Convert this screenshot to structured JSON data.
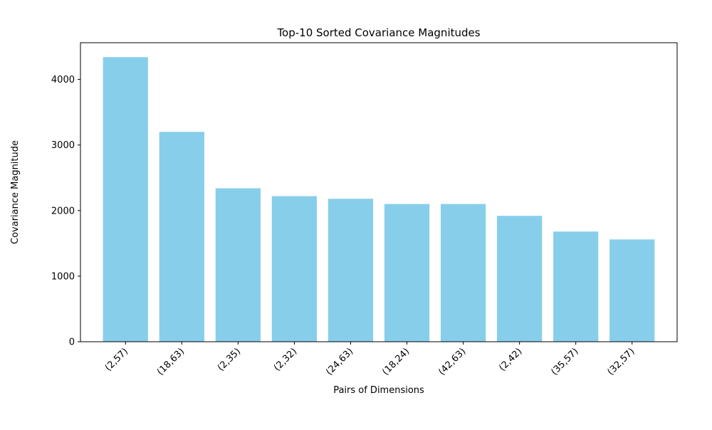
{
  "chart_data": {
    "type": "bar",
    "title": "Top-10 Sorted Covariance Magnitudes",
    "xlabel": "Pairs of Dimensions",
    "ylabel": "Covariance Magnitude",
    "categories": [
      "(2,57)",
      "(18,63)",
      "(2,35)",
      "(2,32)",
      "(24,63)",
      "(18,24)",
      "(42,63)",
      "(2,42)",
      "(35,57)",
      "(32,57)"
    ],
    "values": [
      4340,
      3200,
      2340,
      2220,
      2180,
      2100,
      2100,
      1920,
      1680,
      1560
    ],
    "ylim": [
      0,
      4560
    ],
    "yticks": [
      0,
      1000,
      2000,
      3000,
      4000
    ],
    "ytick_labels": [
      "0",
      "1000",
      "2000",
      "3000",
      "4000"
    ],
    "bar_color": "#87ceeb",
    "grid": false,
    "legend": "none"
  }
}
